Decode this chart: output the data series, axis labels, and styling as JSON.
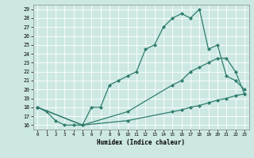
{
  "xlabel": "Humidex (Indice chaleur)",
  "bg_color": "#cde8e3",
  "grid_color": "#ffffff",
  "line_color": "#2e7d6e",
  "xlim": [
    -0.5,
    23.5
  ],
  "ylim": [
    15.5,
    29.5
  ],
  "xticks": [
    0,
    1,
    2,
    3,
    4,
    5,
    6,
    7,
    8,
    9,
    10,
    11,
    12,
    13,
    14,
    15,
    16,
    17,
    18,
    19,
    20,
    21,
    22,
    23
  ],
  "yticks": [
    16,
    17,
    18,
    19,
    20,
    21,
    22,
    23,
    24,
    25,
    26,
    27,
    28,
    29
  ],
  "series1_x": [
    0,
    1,
    2,
    3,
    4,
    5,
    6,
    7,
    8,
    9,
    10,
    11,
    12,
    13,
    14,
    15,
    16,
    17,
    18,
    19,
    20,
    21,
    22,
    23
  ],
  "series1_y": [
    18,
    17.5,
    16.5,
    16,
    16,
    16,
    18,
    18,
    20.5,
    21,
    21.5,
    22,
    24.5,
    25,
    27,
    28,
    28.5,
    28,
    29,
    24.5,
    25,
    21.5,
    21,
    20
  ],
  "series2_x": [
    0,
    5,
    10,
    15,
    16,
    17,
    18,
    19,
    20,
    21,
    22,
    23
  ],
  "series2_y": [
    18,
    16,
    17.5,
    20.5,
    21,
    22,
    22.5,
    23,
    23.5,
    23.5,
    22,
    19.5
  ],
  "series3_x": [
    0,
    5,
    10,
    15,
    16,
    17,
    18,
    19,
    20,
    21,
    22,
    23
  ],
  "series3_y": [
    18,
    16,
    16.5,
    17.5,
    17.7,
    18,
    18.2,
    18.5,
    18.8,
    19,
    19.3,
    19.5
  ]
}
